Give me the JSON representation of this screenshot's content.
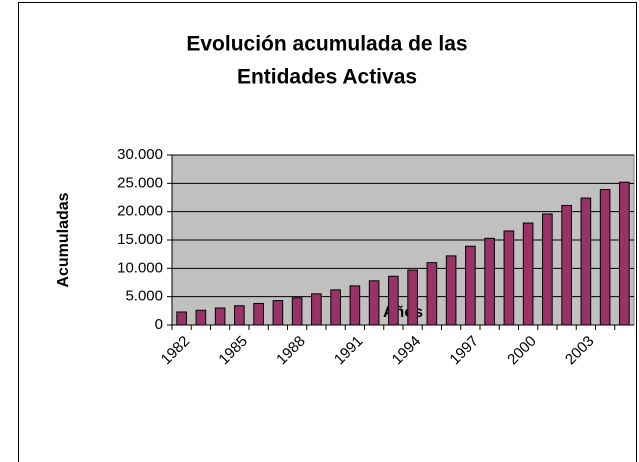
{
  "chart_data": {
    "type": "bar",
    "title": [
      "Evolución acumulada de las",
      "Entidades Activas"
    ],
    "x_label": "Años",
    "y_label": "Acumuladas",
    "categories": [
      "1982",
      null,
      null,
      "1985",
      null,
      null,
      "1988",
      null,
      null,
      "1991",
      null,
      null,
      "1994",
      null,
      null,
      "1997",
      null,
      null,
      "2000",
      null,
      null,
      "2003",
      null,
      null
    ],
    "values": [
      2300,
      2600,
      3000,
      3400,
      3800,
      4300,
      4800,
      5500,
      6200,
      6900,
      7800,
      8600,
      9700,
      11000,
      12200,
      13900,
      15300,
      16600,
      18000,
      19600,
      21100,
      22400,
      23900,
      25200
    ],
    "color": "#993366",
    "ylim": [
      0,
      30000
    ],
    "yticks": [
      0,
      {
        "value": 5000,
        "label": "5.000"
      },
      {
        "value": 10000,
        "label": "10.000"
      },
      {
        "value": 15000,
        "label": "15.000"
      },
      {
        "value": 20000,
        "label": "20.000"
      },
      {
        "value": 25000,
        "label": "25.000"
      },
      {
        "value": 30000,
        "label": "30.000"
      }
    ],
    "grid": true
  }
}
